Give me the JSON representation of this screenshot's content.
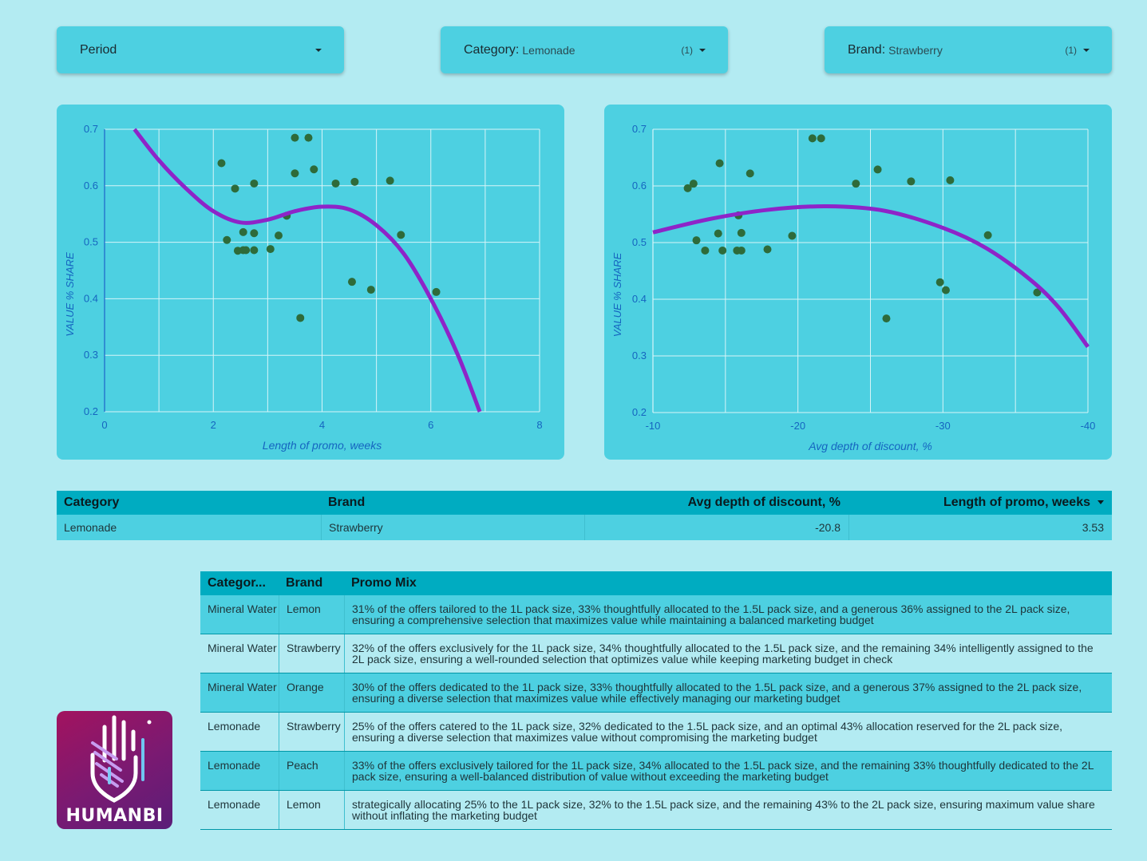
{
  "filters": {
    "period": {
      "label": "Period"
    },
    "category": {
      "label": "Category:",
      "value": "Lemonade",
      "count": "(1)"
    },
    "brand": {
      "label": "Brand:",
      "value": "Strawberry",
      "count": "(1)"
    }
  },
  "colors": {
    "background": "#b3ebf2",
    "card": "#4dd0e1",
    "header": "#00acc1",
    "points": "#2e6b3a",
    "trend": "#8e24c8",
    "axis_text": "#1565c0"
  },
  "chart_data": [
    {
      "type": "scatter",
      "xlabel": "Length of promo, weeks",
      "ylabel": "VALUE % SHARE",
      "xlim": [
        0,
        8
      ],
      "ylim": [
        0.2,
        0.7
      ],
      "x_ticks": [
        "0",
        "2",
        "4",
        "6",
        "8"
      ],
      "y_ticks": [
        "0.2",
        "0.3",
        "0.4",
        "0.5",
        "0.6",
        "0.7"
      ],
      "grid": true,
      "trendline": "polynomial",
      "trend_curve": [
        [
          0.55,
          0.7
        ],
        [
          1,
          0.645
        ],
        [
          1.5,
          0.595
        ],
        [
          2,
          0.555
        ],
        [
          2.5,
          0.535
        ],
        [
          3,
          0.54
        ],
        [
          3.5,
          0.555
        ],
        [
          4,
          0.563
        ],
        [
          4.5,
          0.558
        ],
        [
          5,
          0.53
        ],
        [
          5.5,
          0.48
        ],
        [
          6,
          0.4
        ],
        [
          6.5,
          0.3
        ],
        [
          6.9,
          0.2
        ]
      ],
      "points": [
        [
          2.15,
          0.64
        ],
        [
          2.4,
          0.595
        ],
        [
          2.75,
          0.604
        ],
        [
          3.5,
          0.685
        ],
        [
          3.75,
          0.685
        ],
        [
          3.5,
          0.622
        ],
        [
          3.85,
          0.629
        ],
        [
          4.25,
          0.604
        ],
        [
          4.6,
          0.607
        ],
        [
          5.25,
          0.609
        ],
        [
          2.25,
          0.504
        ],
        [
          2.45,
          0.485
        ],
        [
          2.55,
          0.518
        ],
        [
          2.55,
          0.486
        ],
        [
          2.6,
          0.486
        ],
        [
          2.75,
          0.486
        ],
        [
          2.75,
          0.516
        ],
        [
          3.05,
          0.488
        ],
        [
          3.2,
          0.512
        ],
        [
          3.35,
          0.547
        ],
        [
          5.45,
          0.513
        ],
        [
          4.55,
          0.43
        ],
        [
          4.9,
          0.416
        ],
        [
          6.1,
          0.412
        ],
        [
          3.6,
          0.366
        ]
      ]
    },
    {
      "type": "scatter",
      "xlabel": "Avg depth of discount, %",
      "ylabel": "VALUE % SHARE",
      "xlim": [
        -10,
        -40
      ],
      "ylim": [
        0.2,
        0.7
      ],
      "x_ticks": [
        "-10",
        "-20",
        "-30",
        "-40"
      ],
      "y_ticks": [
        "0.2",
        "0.3",
        "0.4",
        "0.5",
        "0.6",
        "0.7"
      ],
      "grid": true,
      "trendline": "polynomial",
      "trend_curve": [
        [
          -10,
          0.518
        ],
        [
          -14,
          0.542
        ],
        [
          -18,
          0.558
        ],
        [
          -22,
          0.564
        ],
        [
          -26,
          0.556
        ],
        [
          -30,
          0.526
        ],
        [
          -33,
          0.49
        ],
        [
          -36,
          0.435
        ],
        [
          -38,
          0.385
        ],
        [
          -40,
          0.316
        ]
      ],
      "points": [
        [
          -12.4,
          0.596
        ],
        [
          -12.8,
          0.604
        ],
        [
          -14.6,
          0.64
        ],
        [
          -16.7,
          0.622
        ],
        [
          -21,
          0.684
        ],
        [
          -21.6,
          0.684
        ],
        [
          -24,
          0.604
        ],
        [
          -25.5,
          0.629
        ],
        [
          -27.8,
          0.608
        ],
        [
          -30.5,
          0.61
        ],
        [
          -13,
          0.504
        ],
        [
          -13.6,
          0.486
        ],
        [
          -14.5,
          0.516
        ],
        [
          -14.8,
          0.486
        ],
        [
          -15.8,
          0.486
        ],
        [
          -16.1,
          0.486
        ],
        [
          -15.9,
          0.548
        ],
        [
          -16.1,
          0.517
        ],
        [
          -17.9,
          0.488
        ],
        [
          -19.6,
          0.512
        ],
        [
          -33.1,
          0.513
        ],
        [
          -29.8,
          0.43
        ],
        [
          -30.2,
          0.416
        ],
        [
          -36.5,
          0.412
        ],
        [
          -26.1,
          0.366
        ]
      ]
    }
  ],
  "summary_table": {
    "headers": [
      "Category",
      "Brand",
      "Avg depth of discount, %",
      "Length of promo, weeks"
    ],
    "row": [
      "Lemonade",
      "Strawberry",
      "-20.8",
      "3.53"
    ]
  },
  "promo_table": {
    "headers": [
      "Categor...",
      "Brand",
      "Promo Mix"
    ],
    "rows": [
      [
        "Mineral Water",
        "Lemon",
        "31% of the offers tailored to the 1L pack size, 33% thoughtfully allocated to the 1.5L pack size, and a generous 36% assigned to the 2L pack size, ensuring a comprehensive selection that maximizes value while maintaining a balanced marketing budget"
      ],
      [
        "Mineral Water",
        "Strawberry",
        "32% of the offers exclusively for the 1L pack size, 34% thoughtfully allocated to the 1.5L pack size, and the remaining 34% intelligently assigned to the 2L pack size, ensuring a well-rounded selection that optimizes value while keeping marketing budget in check"
      ],
      [
        "Mineral Water",
        "Orange",
        "30% of the offers dedicated to the 1L pack size, 33% thoughtfully allocated to the 1.5L pack size, and a generous 37% assigned to the 2L pack size, ensuring a diverse selection that maximizes value while effectively managing our marketing budget"
      ],
      [
        "Lemonade",
        "Strawberry",
        "25% of the offers catered to the 1L pack size, 32% dedicated to the 1.5L pack size, and an optimal 43% allocation reserved for the 2L pack size, ensuring a diverse selection that maximizes value without compromising the marketing budget"
      ],
      [
        "Lemonade",
        "Peach",
        "33% of the offers exclusively tailored for the 1L pack size, 34% allocated to the 1.5L pack size, and the remaining 33% thoughtfully dedicated to the 2L pack size, ensuring a well-balanced distribution of value without exceeding the marketing budget"
      ],
      [
        "Lemonade",
        "Lemon",
        "strategically allocating 25% to the 1L pack size, 32% to the 1.5L pack size, and the remaining 43% to the 2L pack size, ensuring maximum value share without inflating the marketing budget"
      ]
    ]
  },
  "logo": {
    "text": "HUMANBI"
  }
}
